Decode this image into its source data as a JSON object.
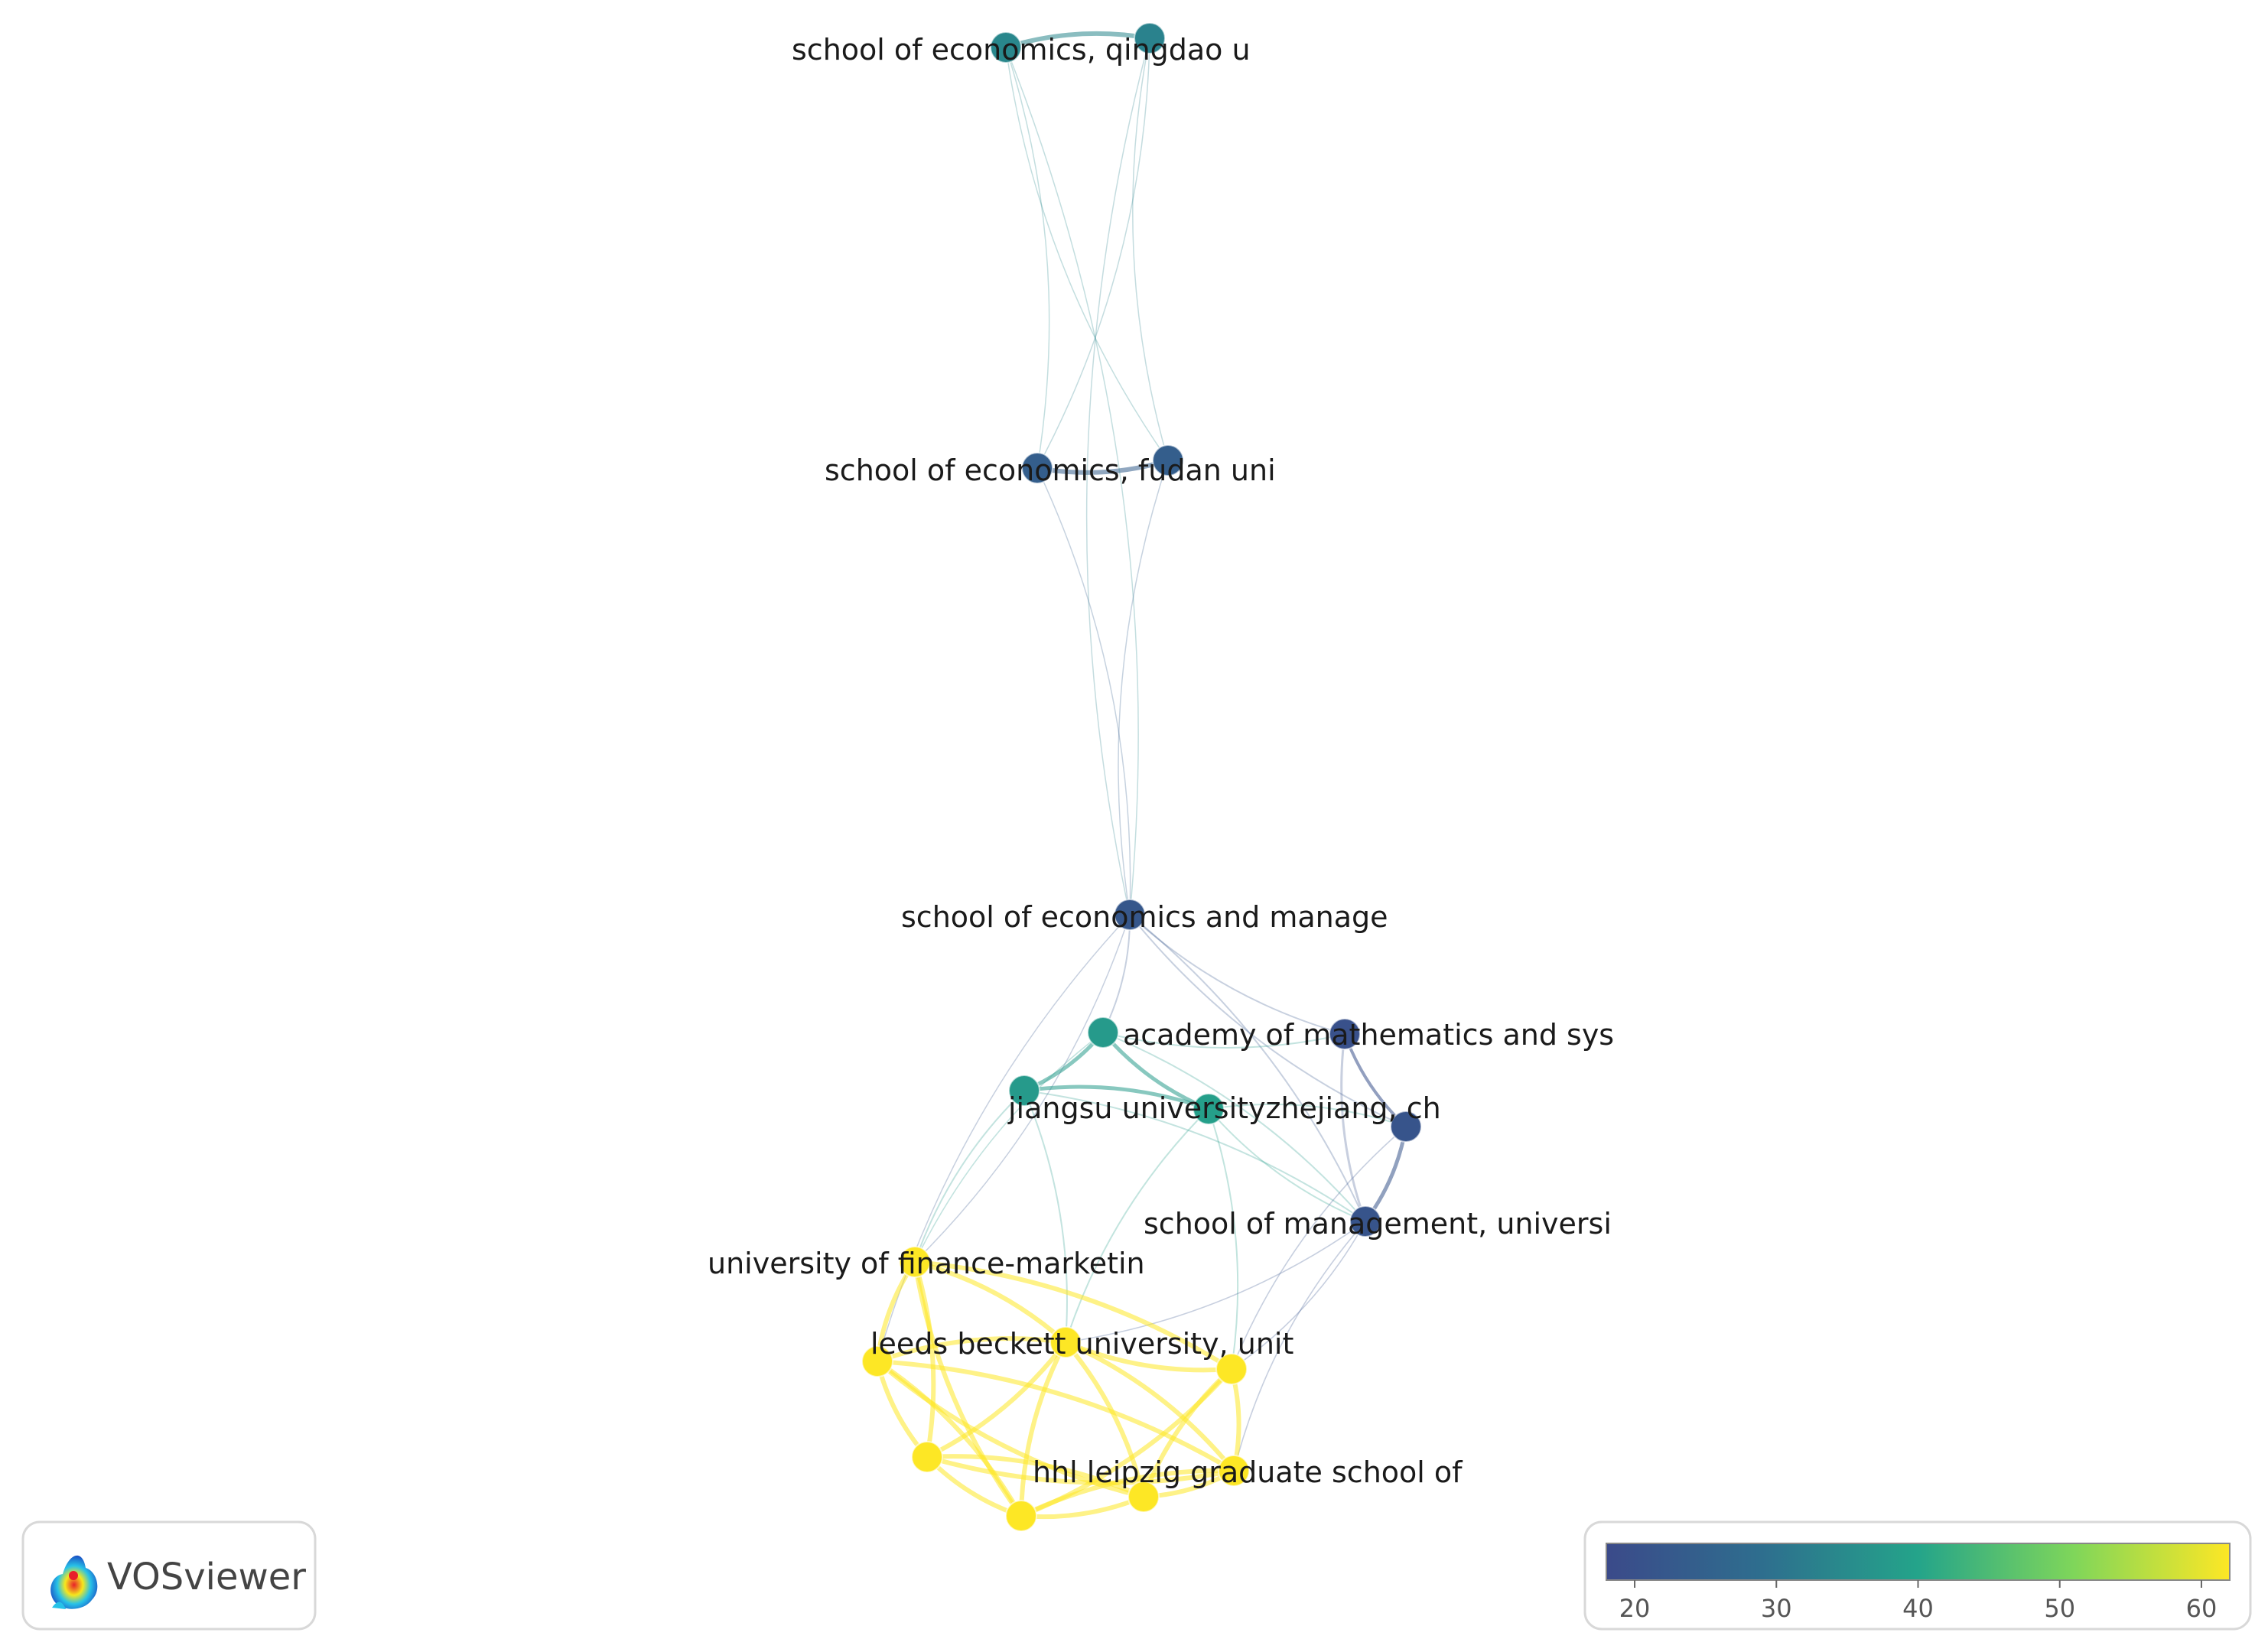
{
  "network": {
    "nodes": [
      {
        "id": "n1",
        "label": "school of economics, qingdao u",
        "score": 34
      },
      {
        "id": "n2",
        "label": "",
        "score": 33
      },
      {
        "id": "n3",
        "label": "school of economics, fudan uni",
        "score": 24
      },
      {
        "id": "n4",
        "label": "",
        "score": 24
      },
      {
        "id": "n5",
        "label": "school of economics and manage",
        "score": 22
      },
      {
        "id": "n6",
        "label": "academy of mathematics and sys",
        "score": 38
      },
      {
        "id": "n7",
        "label": "",
        "score": 38
      },
      {
        "id": "n8",
        "label": "jiangsu universityzhejiang, ch",
        "score": 39
      },
      {
        "id": "n9",
        "label": "",
        "score": 20
      },
      {
        "id": "n10",
        "label": "",
        "score": 21
      },
      {
        "id": "n11",
        "label": "school of management, universi",
        "score": 21
      },
      {
        "id": "n12",
        "label": "university of finance-marketin",
        "score": 62
      },
      {
        "id": "n13",
        "label": "leeds beckett university, unit",
        "score": 62
      },
      {
        "id": "n14",
        "label": "",
        "score": 62
      },
      {
        "id": "n15",
        "label": "",
        "score": 62
      },
      {
        "id": "n16",
        "label": "",
        "score": 62
      },
      {
        "id": "n17",
        "label": "hhl leipzig graduate school of",
        "score": 62
      },
      {
        "id": "n18",
        "label": "",
        "score": 62
      },
      {
        "id": "n19",
        "label": "",
        "score": 62
      }
    ],
    "links": [
      [
        "n1",
        "n2",
        3
      ],
      [
        "n3",
        "n4",
        3
      ],
      [
        "n1",
        "n3",
        0.5
      ],
      [
        "n1",
        "n4",
        0.5
      ],
      [
        "n2",
        "n3",
        0.5
      ],
      [
        "n2",
        "n4",
        0.5
      ],
      [
        "n1",
        "n5",
        0.5
      ],
      [
        "n2",
        "n5",
        0.5
      ],
      [
        "n3",
        "n5",
        0.5
      ],
      [
        "n4",
        "n5",
        0.5
      ],
      [
        "n5",
        "n6",
        1
      ],
      [
        "n5",
        "n9",
        1
      ],
      [
        "n5",
        "n11",
        1
      ],
      [
        "n5",
        "n10",
        1
      ],
      [
        "n5",
        "n12",
        0.5
      ],
      [
        "n5",
        "n14",
        0.5
      ],
      [
        "n6",
        "n7",
        2.5
      ],
      [
        "n6",
        "n8",
        2.5
      ],
      [
        "n7",
        "n8",
        2.5
      ],
      [
        "n6",
        "n9",
        1
      ],
      [
        "n8",
        "n10",
        1
      ],
      [
        "n9",
        "n10",
        2
      ],
      [
        "n10",
        "n11",
        2.5
      ],
      [
        "n9",
        "n11",
        1.5
      ],
      [
        "n7",
        "n11",
        1
      ],
      [
        "n8",
        "n11",
        1
      ],
      [
        "n6",
        "n11",
        1
      ],
      [
        "n7",
        "n12",
        1
      ],
      [
        "n7",
        "n13",
        1
      ],
      [
        "n8",
        "n13",
        1
      ],
      [
        "n8",
        "n16",
        1
      ],
      [
        "n6",
        "n12",
        0.8
      ],
      [
        "n11",
        "n13",
        0.8
      ],
      [
        "n11",
        "n17",
        0.8
      ],
      [
        "n11",
        "n16",
        0.8
      ],
      [
        "n10",
        "n16",
        0.8
      ],
      [
        "n12",
        "n13",
        3
      ],
      [
        "n12",
        "n14",
        3
      ],
      [
        "n12",
        "n15",
        3
      ],
      [
        "n12",
        "n18",
        3
      ],
      [
        "n12",
        "n16",
        3
      ],
      [
        "n13",
        "n14",
        3
      ],
      [
        "n13",
        "n15",
        3
      ],
      [
        "n13",
        "n16",
        3
      ],
      [
        "n13",
        "n17",
        3
      ],
      [
        "n13",
        "n18",
        3
      ],
      [
        "n13",
        "n19",
        3
      ],
      [
        "n14",
        "n15",
        3
      ],
      [
        "n14",
        "n18",
        3
      ],
      [
        "n14",
        "n19",
        3
      ],
      [
        "n14",
        "n17",
        3
      ],
      [
        "n15",
        "n18",
        3
      ],
      [
        "n15",
        "n19",
        3
      ],
      [
        "n15",
        "n17",
        3
      ],
      [
        "n16",
        "n17",
        3
      ],
      [
        "n16",
        "n19",
        3
      ],
      [
        "n16",
        "n18",
        3
      ],
      [
        "n17",
        "n18",
        3
      ],
      [
        "n17",
        "n19",
        3
      ],
      [
        "n18",
        "n19",
        3
      ]
    ]
  },
  "legend": {
    "ticks": [
      20,
      30,
      40,
      50,
      60
    ],
    "min": 18,
    "max": 62,
    "colors": [
      "#3b4a8a",
      "#2e6e8e",
      "#24a48a",
      "#7fd65a",
      "#fde725"
    ]
  },
  "logo": {
    "text": "VOSviewer",
    "icon": "vosviewer-logo-icon"
  }
}
